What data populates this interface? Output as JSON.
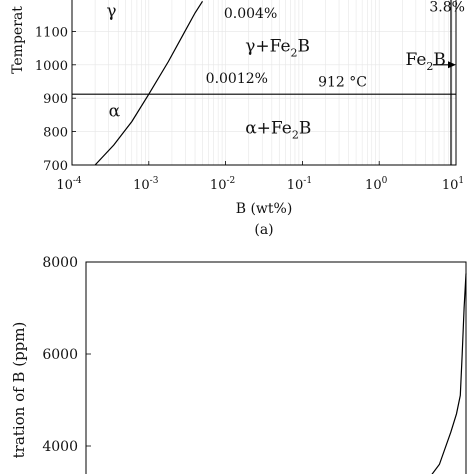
{
  "panel_label": "(a)",
  "chart_data": [
    {
      "type": "line",
      "xscale": "log",
      "xlabel": "B (wt%)",
      "ylabel": "Temperat",
      "xlim": [
        0.0001,
        10
      ],
      "ylim": [
        700,
        1200
      ],
      "x_ticks": [
        {
          "value": 0.0001,
          "base": "10",
          "exp": "-4"
        },
        {
          "value": 0.001,
          "base": "10",
          "exp": "-3"
        },
        {
          "value": 0.01,
          "base": "10",
          "exp": "-2"
        },
        {
          "value": 0.1,
          "base": "10",
          "exp": "-1"
        },
        {
          "value": 1,
          "base": "10",
          "exp": "0"
        },
        {
          "value": 10,
          "base": "10",
          "exp": "1"
        }
      ],
      "y_ticks": [
        700,
        800,
        900,
        1000,
        1100
      ],
      "grid": true,
      "series": [
        {
          "values": [
            [
              0.0002,
              700
            ],
            [
              0.00035,
              760
            ],
            [
              0.0006,
              830
            ],
            [
              0.001,
              912
            ],
            [
              0.0018,
              1010
            ],
            [
              0.0028,
              1090
            ],
            [
              0.004,
              1155
            ],
            [
              0.005,
              1190
            ]
          ]
        },
        {
          "values": [
            [
              0.0001,
              912
            ],
            [
              10,
              912
            ]
          ]
        },
        {
          "values": [
            [
              8.6,
              700
            ],
            [
              8.6,
              1200
            ]
          ]
        }
      ],
      "annotations": [
        {
          "text": "γ",
          "x": 0.00028,
          "y": 1145
        },
        {
          "text": "0.004%",
          "x": 0.0095,
          "y": 1140
        },
        {
          "text": "3.8%",
          "x": 4.5,
          "y": 1160
        },
        {
          "text": "γ+Fe",
          "sub": "2",
          "after": "B",
          "x": 0.018,
          "y": 1040
        },
        {
          "text": "Fe",
          "sub": "2",
          "after": "B",
          "x": 2.2,
          "y": 1000
        },
        {
          "text": "0.0012%",
          "x": 0.0055,
          "y": 945
        },
        {
          "text": "912 °C",
          "x": 0.16,
          "y": 935
        },
        {
          "text": "α",
          "x": 0.0003,
          "y": 845
        },
        {
          "text": "α+Fe",
          "sub": "2",
          "after": "B",
          "x": 0.018,
          "y": 795
        }
      ],
      "arrow": {
        "from": [
          5,
          1000
        ],
        "to": [
          10,
          1000
        ]
      }
    },
    {
      "type": "line",
      "ylabel": "tration of B (ppm)",
      "ylim": [
        3000,
        8000
      ],
      "y_ticks": [
        4000,
        6000,
        8000
      ],
      "series": [
        {
          "values": [
            [
              0.0,
              3000
            ],
            [
              0.5,
              3000
            ],
            [
              0.88,
              3050
            ],
            [
              0.93,
              3600
            ],
            [
              0.96,
              4300
            ],
            [
              0.975,
              4700
            ],
            [
              0.985,
              5100
            ],
            [
              0.99,
              6000
            ],
            [
              0.995,
              7000
            ],
            [
              1.0,
              7750
            ]
          ]
        }
      ]
    }
  ]
}
